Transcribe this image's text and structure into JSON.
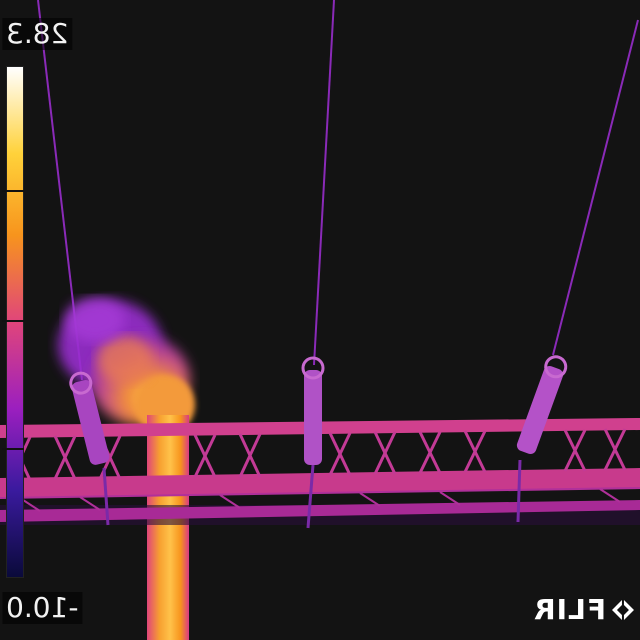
{
  "image": {
    "kind": "thermal-camera-frame",
    "palette": "iron",
    "mirrored": true
  },
  "scale": {
    "max_label": "28.3",
    "min_label": "-10.0",
    "colors": [
      "#ffffff",
      "#ffd23a",
      "#f7941d",
      "#e0457b",
      "#9b1fbf",
      "#3a1a9e",
      "#0a0a3a"
    ]
  },
  "logo": {
    "text": "FLIR"
  }
}
